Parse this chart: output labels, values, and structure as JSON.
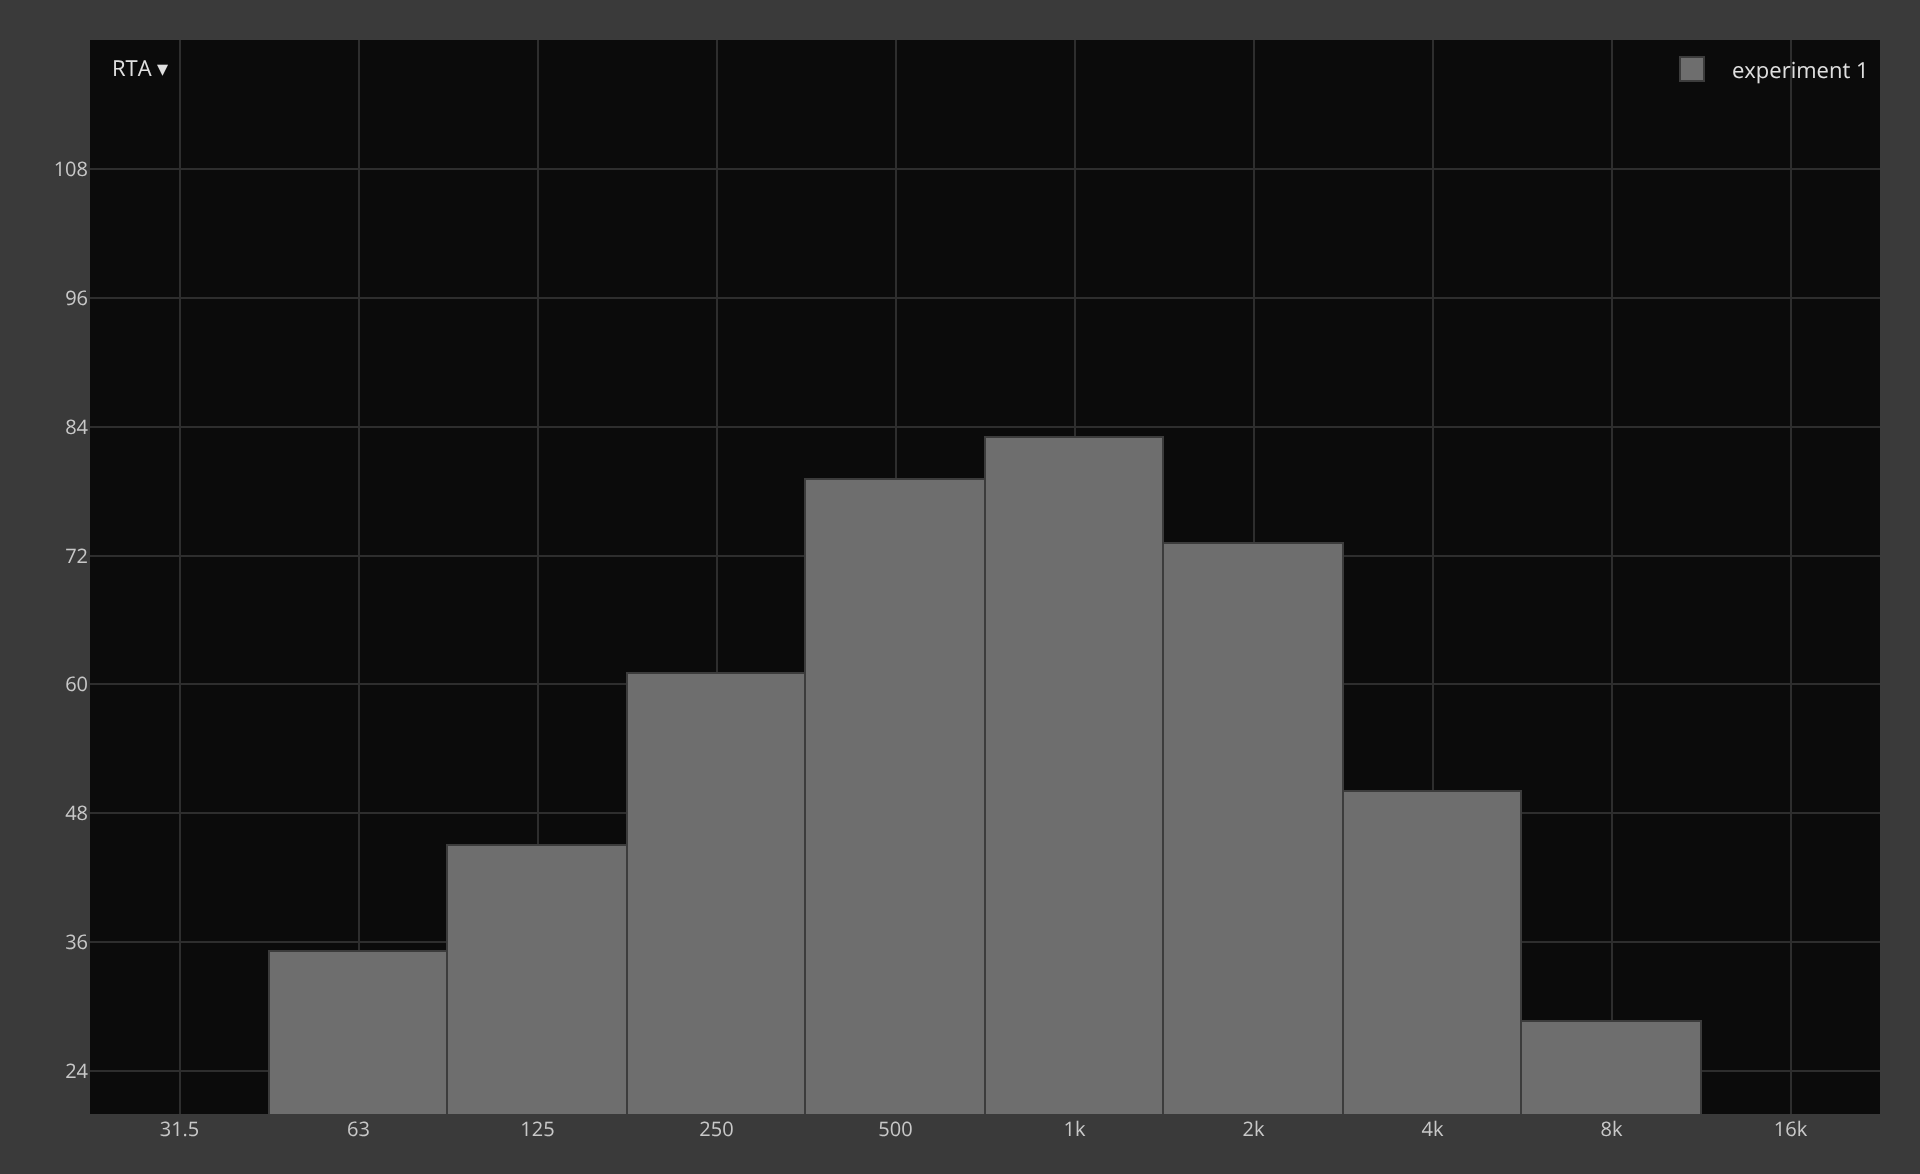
{
  "chart_data": {
    "type": "bar",
    "title": "RTA ▾",
    "categories": [
      "31.5",
      "63",
      "125",
      "250",
      "500",
      "1k",
      "2k",
      "4k",
      "8k",
      "16k"
    ],
    "series": [
      {
        "name": "experiment 1",
        "color": "#6e6e6e",
        "values": [
          null,
          35,
          45,
          61,
          79,
          83,
          73,
          50,
          28.5,
          null
        ]
      }
    ],
    "ylim": [
      20,
      120
    ],
    "yticks": [
      24,
      36,
      48,
      60,
      72,
      84,
      96,
      108
    ],
    "grid": true,
    "legend": "top right"
  }
}
